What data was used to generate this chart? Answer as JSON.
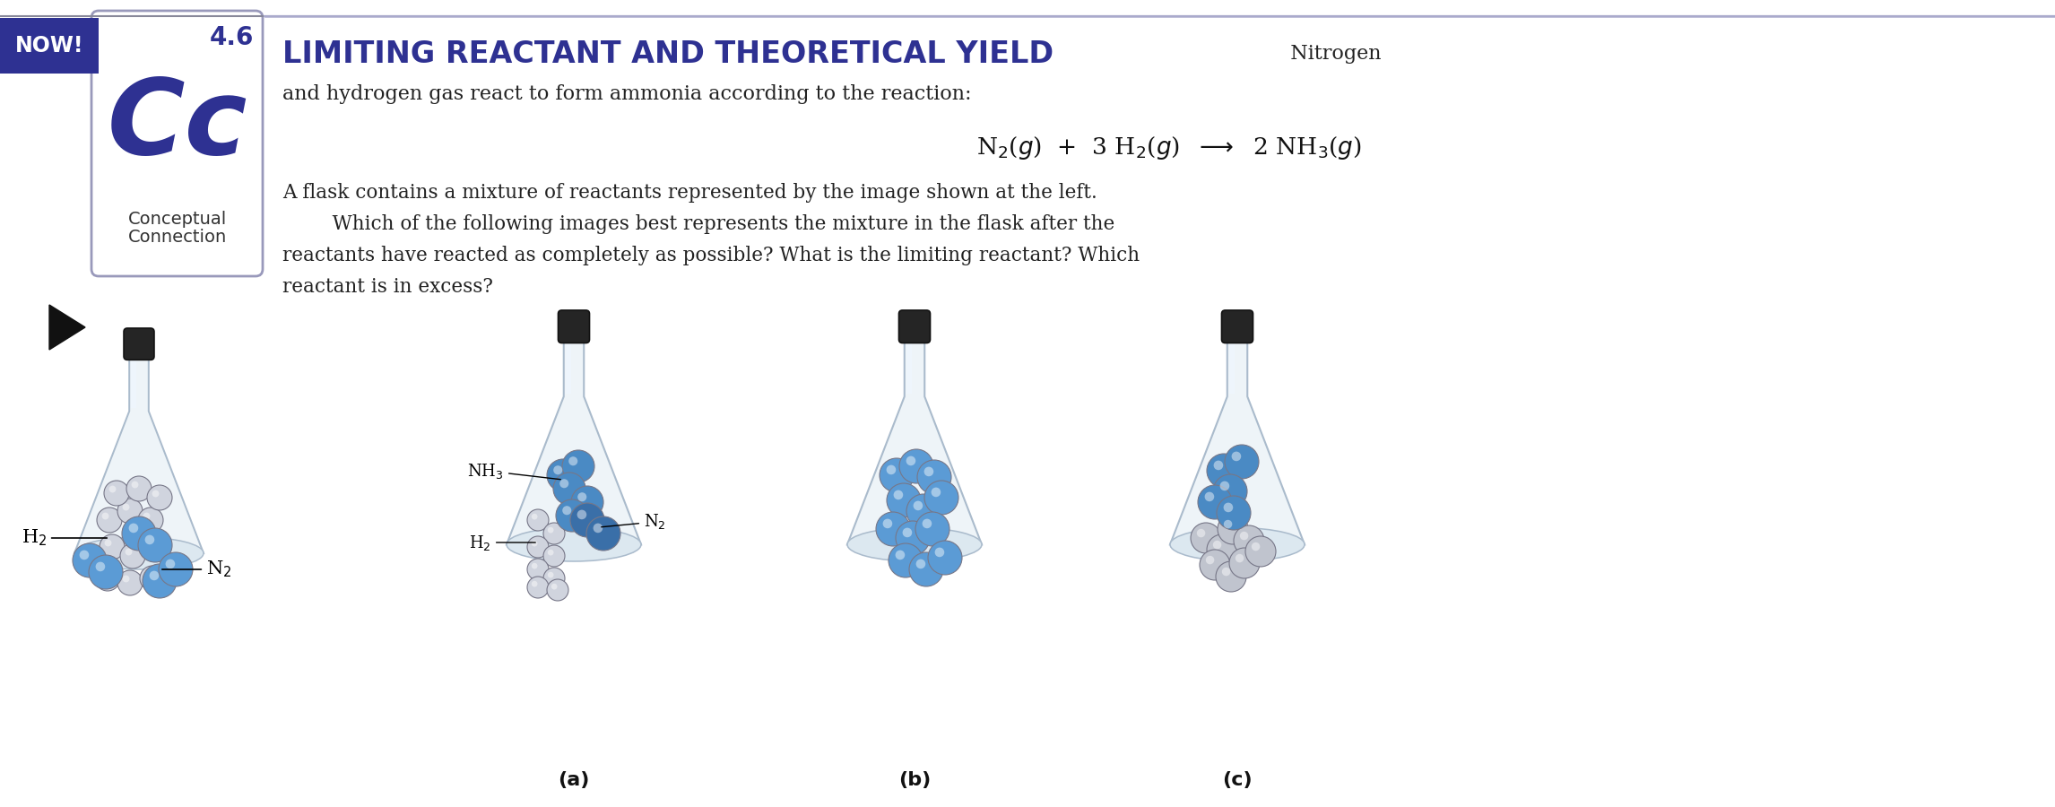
{
  "bg_color": "#ffffff",
  "now_banner_color": "#2e3192",
  "now_text": "NOW!",
  "section_number": "4.6",
  "cc_color": "#2e3192",
  "box_border_color": "#9999bb",
  "title_main": "LIMITING REACTANT AND THEORETICAL YIELD",
  "title_suffix": "  Nitrogen",
  "title_color": "#2e3192",
  "subtitle": "and hydrogen gas react to form ammonia according to the reaction:",
  "body_text_line1": "A flask contains a mixture of reactants represented by the image shown at the left.",
  "body_text_line2": "   Which of the following images best represents the mixture in the flask after the",
  "body_text_line3": "reactants have reacted as completely as possible? What is the limiting reactant? Which",
  "body_text_line4": "reactant is in excess?",
  "label_a": "(a)",
  "label_b": "(b)",
  "label_c": "(c)",
  "flask_color_outer": "#dce8f0",
  "flask_color_inner": "#eef4f8",
  "flask_outline": "#aabbcc",
  "stopper_color": "#252525",
  "stopper_ring_color": "#444444",
  "ball_blue": "#5b9bd5",
  "ball_blue2": "#4a8ac4",
  "ball_blue3": "#3a6fa8",
  "ball_white": "#d0d4de",
  "ball_white2": "#c0c4ce",
  "sep_line_color": "#aaaacc",
  "top_line_color": "#888899"
}
